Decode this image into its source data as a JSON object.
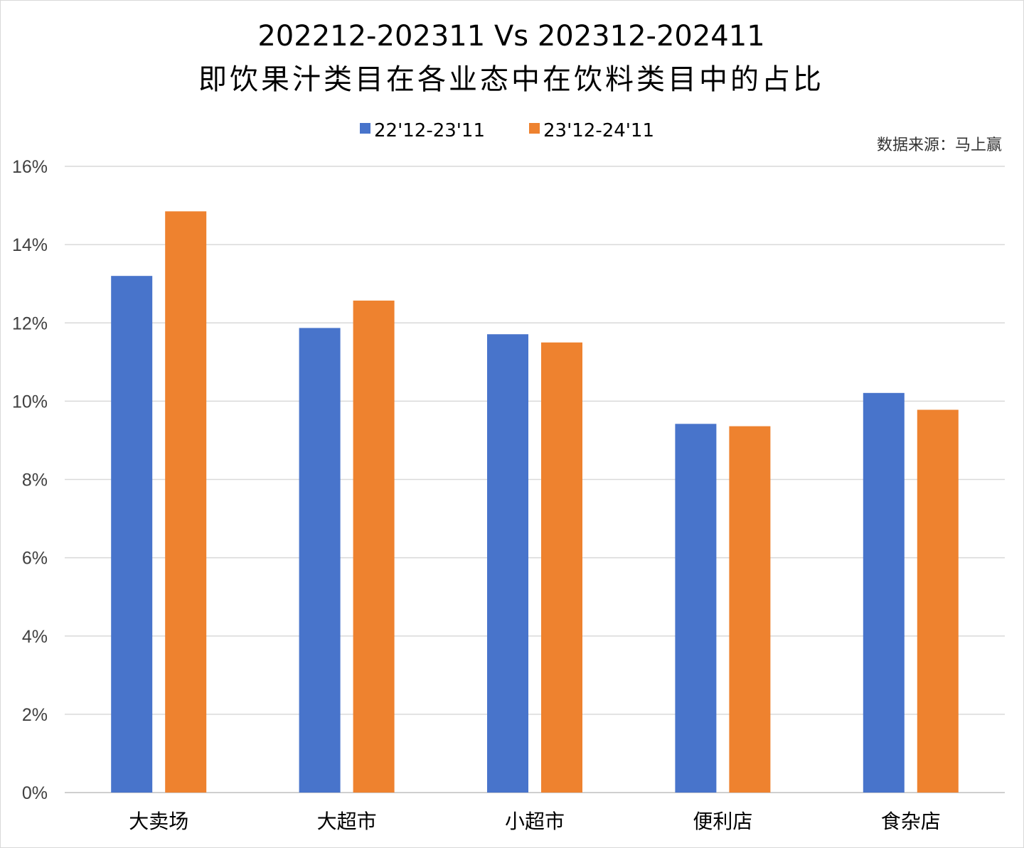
{
  "chart_data": {
    "type": "bar",
    "title": [
      "202212-202311 Vs 202312-202411",
      "即饮果汁类目在各业态中在饮料类目中的占比"
    ],
    "source": "数据来源：马上赢",
    "categories": [
      "大卖场",
      "大超市",
      "小超市",
      "便利店",
      "食杂店"
    ],
    "series": [
      {
        "name": "22'12-23'11",
        "color": "#4874cb",
        "values": [
          13.2,
          11.87,
          11.71,
          9.42,
          10.21
        ]
      },
      {
        "name": "23'12-24'11",
        "color": "#ee822f",
        "values": [
          14.85,
          12.57,
          11.5,
          9.36,
          9.78
        ]
      }
    ],
    "ylim": [
      0,
      16
    ],
    "yticks": [
      0,
      2,
      4,
      6,
      8,
      10,
      12,
      14,
      16
    ],
    "ytick_labels": [
      "0%",
      "2%",
      "4%",
      "6%",
      "8%",
      "10%",
      "12%",
      "14%",
      "16%"
    ],
    "xlabel": "",
    "ylabel": "",
    "grid": true,
    "legend_position": "top"
  }
}
